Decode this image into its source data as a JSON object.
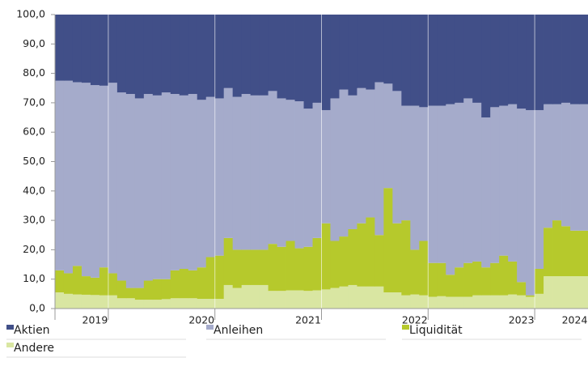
{
  "chart_data": {
    "type": "stacked_bar",
    "categories": [
      null,
      null,
      null,
      null,
      "2019",
      null,
      null,
      null,
      null,
      null,
      null,
      null,
      null,
      null,
      null,
      null,
      "2020",
      null,
      null,
      null,
      null,
      null,
      null,
      null,
      null,
      null,
      null,
      null,
      "2021",
      null,
      null,
      null,
      null,
      null,
      null,
      null,
      null,
      null,
      null,
      null,
      "2022",
      null,
      null,
      null,
      null,
      null,
      null,
      null,
      null,
      null,
      null,
      null,
      "2023",
      null,
      null,
      null,
      null,
      null,
      "2024",
      null
    ],
    "series": [
      {
        "name": "Andere",
        "color": "#d9e6a2",
        "values": [
          5.5,
          5,
          4.8,
          4.7,
          4.6,
          4.5,
          4.5,
          3.5,
          3.5,
          3,
          3,
          3,
          3.2,
          3.5,
          3.5,
          3.5,
          3.3,
          3.3,
          3.3,
          8,
          7,
          8,
          8,
          8,
          6,
          6,
          6.2,
          6.2,
          6,
          6.2,
          6.5,
          7,
          7.5,
          8,
          7.5,
          7.5,
          7.5,
          5.5,
          5.5,
          4.5,
          4.8,
          4.5,
          4,
          4.2,
          4,
          4,
          4,
          4.5,
          4.5,
          4.5,
          4.5,
          4.8,
          4.5,
          4,
          5,
          11,
          11,
          11,
          11,
          11
        ]
      },
      {
        "name": "Liquidität",
        "color": "#b6c92c",
        "values": [
          7.5,
          7,
          9.7,
          6.3,
          5.9,
          9.5,
          7.5,
          6,
          3.5,
          4,
          6.5,
          7,
          6.8,
          9.5,
          10,
          9.5,
          10.7,
          14.2,
          14.7,
          16,
          13,
          12,
          12,
          12,
          16,
          15,
          16.8,
          14.3,
          15,
          17.8,
          22.5,
          16,
          17,
          19,
          21.5,
          23.5,
          17.5,
          35.5,
          23.5,
          25.5,
          15.2,
          18.5,
          11.5,
          11.3,
          7.5,
          10,
          11.5,
          11.5,
          9.5,
          11,
          13.5,
          11.2,
          4.5,
          0.5,
          8.5,
          16.5,
          19,
          17,
          15.5,
          15.5
        ]
      },
      {
        "name": "Anleihen",
        "color": "#a5abcb",
        "values": [
          64.5,
          65.5,
          62.5,
          65.8,
          65.5,
          61.8,
          64.8,
          64,
          66,
          64.5,
          63.5,
          62.5,
          63.5,
          60,
          59,
          60,
          57,
          54.5,
          53.5,
          51,
          52,
          53,
          52.5,
          52.5,
          52,
          50.5,
          48,
          50,
          47,
          46,
          38.5,
          48.5,
          50,
          45.5,
          46,
          43.5,
          52,
          35.5,
          45,
          39,
          49,
          45.5,
          53.5,
          53.5,
          58,
          56,
          56,
          54,
          51,
          53,
          51,
          53.5,
          59,
          63,
          54,
          42,
          39.5,
          42,
          43,
          43
        ]
      },
      {
        "name": "Aktien",
        "color": "#414f88",
        "values": [
          22.5,
          22.5,
          23,
          23.2,
          24,
          24.2,
          23.2,
          26.5,
          27,
          28.5,
          27,
          27.5,
          26.5,
          27,
          27.5,
          27,
          29,
          28,
          28.5,
          25,
          28,
          27,
          27.5,
          27.5,
          26,
          28.5,
          29,
          29.5,
          32,
          30,
          32.5,
          28.5,
          25.5,
          27.5,
          25,
          25.5,
          23,
          23.5,
          26,
          31,
          31,
          31.5,
          31,
          31,
          30.5,
          30,
          28.5,
          30,
          35,
          31.5,
          31,
          30.5,
          32,
          32.5,
          32.5,
          30.5,
          30.5,
          30,
          30.5,
          30.5
        ]
      }
    ],
    "ylim": [
      0,
      100
    ],
    "yticks": [
      {
        "value": 0,
        "label": "0,0"
      },
      {
        "value": 10,
        "label": "10,0"
      },
      {
        "value": 20,
        "label": "20,0"
      },
      {
        "value": 30,
        "label": "30,0"
      },
      {
        "value": 40,
        "label": "40,0"
      },
      {
        "value": 50,
        "label": "50,0"
      },
      {
        "value": 60,
        "label": "60,0"
      },
      {
        "value": 70,
        "label": "70,0"
      },
      {
        "value": 80,
        "label": "80,0"
      },
      {
        "value": 90,
        "label": "90,0"
      },
      {
        "value": 100,
        "label": "100,0"
      }
    ],
    "legend_order": [
      3,
      2,
      1,
      0
    ]
  }
}
